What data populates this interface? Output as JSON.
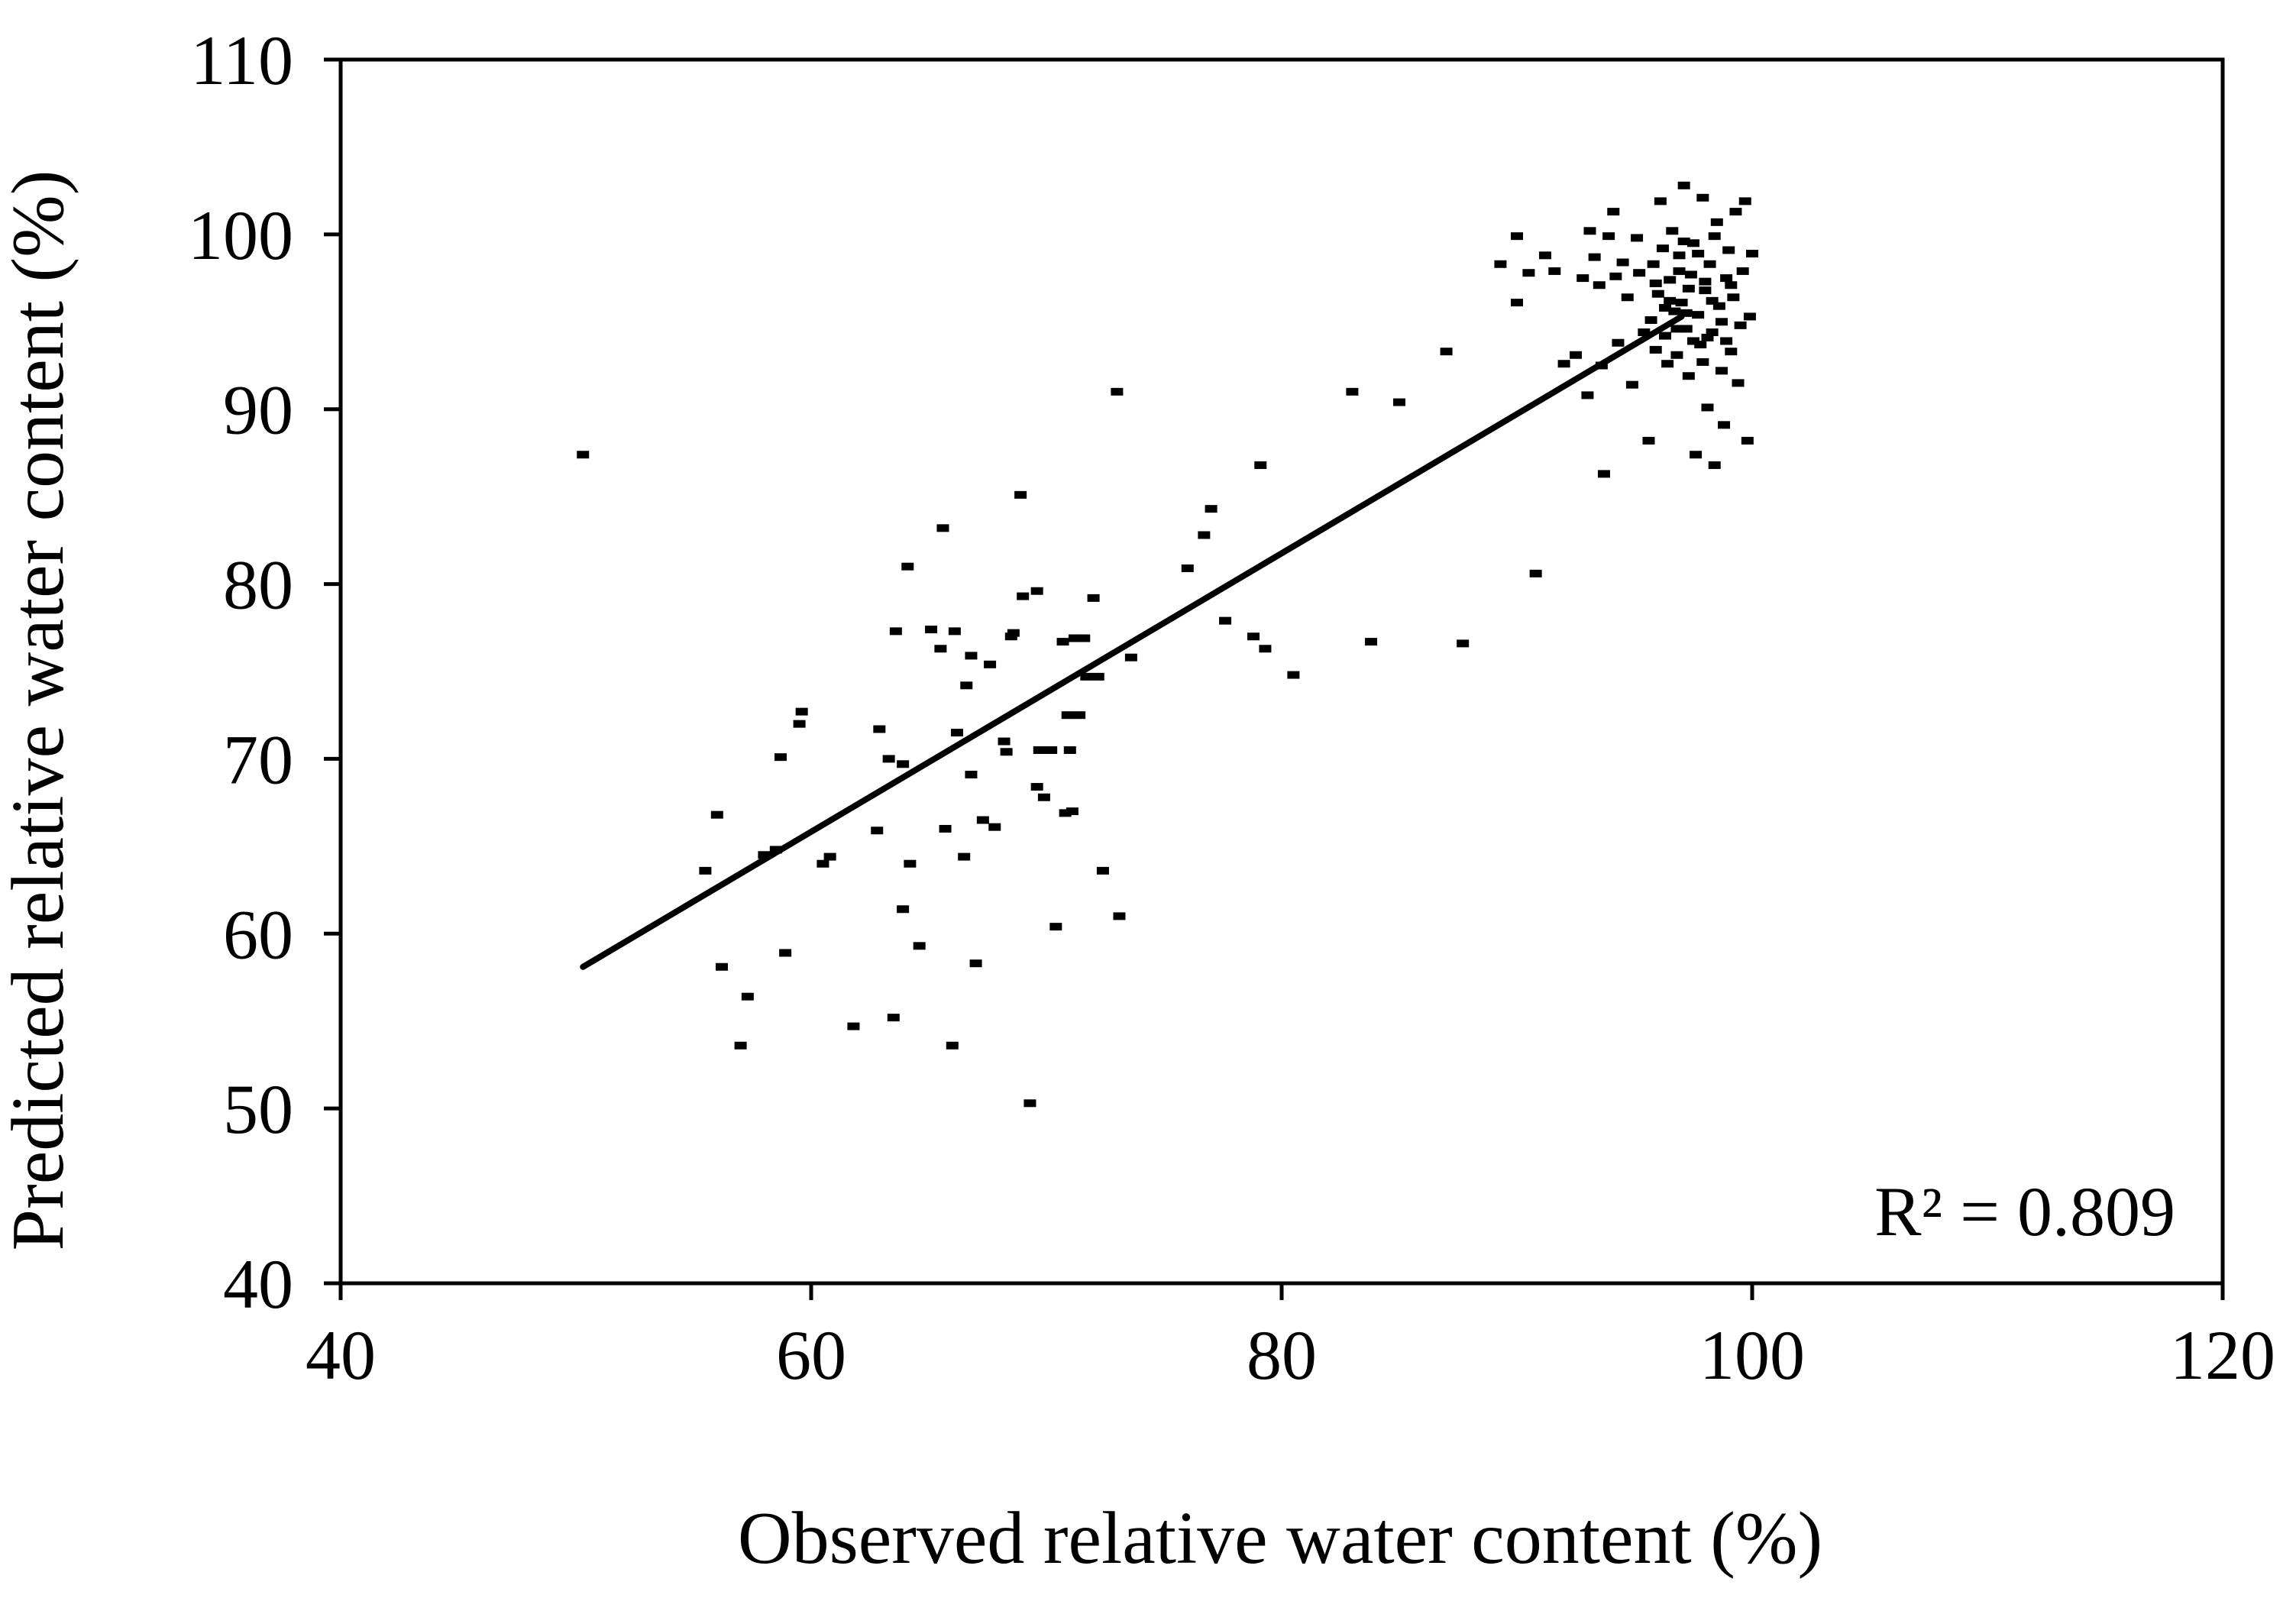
{
  "chart_data": {
    "type": "scatter",
    "title": "",
    "xlabel": "Observed relative water content (%)",
    "ylabel": "Predicted relative water content (%)",
    "xlim": [
      40,
      120
    ],
    "ylim": [
      40,
      110
    ],
    "xticks": [
      "40",
      "60",
      "80",
      "100",
      "120"
    ],
    "yticks": [
      "40",
      "50",
      "60",
      "70",
      "80",
      "90",
      "100",
      "110"
    ],
    "grid": false,
    "legend": "none",
    "annotation": "R² = 0.809",
    "colors": {
      "points": "#000000",
      "line": "#000000",
      "axes": "#000000"
    },
    "trendline": {
      "x": [
        50.3,
        97.0
      ],
      "y": [
        58.1,
        95.3
      ]
    },
    "series": [
      {
        "name": "observations",
        "points": [
          [
            50.3,
            87.4
          ],
          [
            55.5,
            63.6
          ],
          [
            56.0,
            66.8
          ],
          [
            56.2,
            58.1
          ],
          [
            57.0,
            53.6
          ],
          [
            57.3,
            56.4
          ],
          [
            58.0,
            64.5
          ],
          [
            58.5,
            64.8
          ],
          [
            58.7,
            70.1
          ],
          [
            58.9,
            58.9
          ],
          [
            59.5,
            72.0
          ],
          [
            59.6,
            72.7
          ],
          [
            60.5,
            64.0
          ],
          [
            60.8,
            64.4
          ],
          [
            61.8,
            54.7
          ],
          [
            62.8,
            65.9
          ],
          [
            62.9,
            71.7
          ],
          [
            63.3,
            70.0
          ],
          [
            63.5,
            55.2
          ],
          [
            63.6,
            77.3
          ],
          [
            63.9,
            69.7
          ],
          [
            63.9,
            61.4
          ],
          [
            64.1,
            81.0
          ],
          [
            64.2,
            64.0
          ],
          [
            64.6,
            59.3
          ],
          [
            65.1,
            77.4
          ],
          [
            65.5,
            76.3
          ],
          [
            65.6,
            83.2
          ],
          [
            65.7,
            66.0
          ],
          [
            66.0,
            53.6
          ],
          [
            66.1,
            77.3
          ],
          [
            66.2,
            71.5
          ],
          [
            66.5,
            64.4
          ],
          [
            66.6,
            74.2
          ],
          [
            66.8,
            75.9
          ],
          [
            66.8,
            69.1
          ],
          [
            67.0,
            58.3
          ],
          [
            67.3,
            66.5
          ],
          [
            67.6,
            75.4
          ],
          [
            67.8,
            66.1
          ],
          [
            68.2,
            71.0
          ],
          [
            68.3,
            70.4
          ],
          [
            68.5,
            77.0
          ],
          [
            68.6,
            77.2
          ],
          [
            68.9,
            85.1
          ],
          [
            69.0,
            79.3
          ],
          [
            69.3,
            50.3
          ],
          [
            69.6,
            79.6
          ],
          [
            69.6,
            68.4
          ],
          [
            69.7,
            70.5
          ],
          [
            69.9,
            67.8
          ],
          [
            70.2,
            70.5
          ],
          [
            70.4,
            60.4
          ],
          [
            70.7,
            76.7
          ],
          [
            70.8,
            66.9
          ],
          [
            70.9,
            72.5
          ],
          [
            71.0,
            70.5
          ],
          [
            71.1,
            67.0
          ],
          [
            71.2,
            76.9
          ],
          [
            71.4,
            72.5
          ],
          [
            71.6,
            76.9
          ],
          [
            71.7,
            74.7
          ],
          [
            72.0,
            79.2
          ],
          [
            72.2,
            74.7
          ],
          [
            72.4,
            63.6
          ],
          [
            73.0,
            91.0
          ],
          [
            73.1,
            61.0
          ],
          [
            73.6,
            75.8
          ],
          [
            76.0,
            80.9
          ],
          [
            76.7,
            82.8
          ],
          [
            77.0,
            84.3
          ],
          [
            77.6,
            77.9
          ],
          [
            78.8,
            77.0
          ],
          [
            79.1,
            86.8
          ],
          [
            79.3,
            76.3
          ],
          [
            80.5,
            74.8
          ],
          [
            83.0,
            91.0
          ],
          [
            83.8,
            76.7
          ],
          [
            85.0,
            90.4
          ],
          [
            87.0,
            93.3
          ],
          [
            87.7,
            76.6
          ],
          [
            89.3,
            98.3
          ],
          [
            90.0,
            96.1
          ],
          [
            90.0,
            99.9
          ],
          [
            90.5,
            97.8
          ],
          [
            90.8,
            80.6
          ],
          [
            91.2,
            98.8
          ],
          [
            91.6,
            97.9
          ],
          [
            92.0,
            92.6
          ],
          [
            92.5,
            93.1
          ],
          [
            92.8,
            97.5
          ],
          [
            93.0,
            90.8
          ],
          [
            93.1,
            100.2
          ],
          [
            93.3,
            98.7
          ],
          [
            93.5,
            97.1
          ],
          [
            93.6,
            92.5
          ],
          [
            93.7,
            86.3
          ],
          [
            93.9,
            99.9
          ],
          [
            94.1,
            101.3
          ],
          [
            94.2,
            97.6
          ],
          [
            94.3,
            93.8
          ],
          [
            94.5,
            98.4
          ],
          [
            94.7,
            96.4
          ],
          [
            94.9,
            91.4
          ],
          [
            95.1,
            99.8
          ],
          [
            95.2,
            97.8
          ],
          [
            95.4,
            94.4
          ],
          [
            95.6,
            88.2
          ],
          [
            95.7,
            95.1
          ],
          [
            95.8,
            98.3
          ],
          [
            95.9,
            93.4
          ],
          [
            96.0,
            96.6
          ],
          [
            96.1,
            101.9
          ],
          [
            96.2,
            99.2
          ],
          [
            96.3,
            94.2
          ],
          [
            96.4,
            92.6
          ],
          [
            96.5,
            97.4
          ],
          [
            96.6,
            100.2
          ],
          [
            96.7,
            95.6
          ],
          [
            96.8,
            93.1
          ],
          [
            96.9,
            98.8
          ],
          [
            97.0,
            96.1
          ],
          [
            97.1,
            102.8
          ],
          [
            97.2,
            94.6
          ],
          [
            97.3,
            91.9
          ],
          [
            97.4,
            97.7
          ],
          [
            97.5,
            99.5
          ],
          [
            97.6,
            87.4
          ],
          [
            97.7,
            95.4
          ],
          [
            97.8,
            93.7
          ],
          [
            97.9,
            102.1
          ],
          [
            98.0,
            96.8
          ],
          [
            98.1,
            90.1
          ],
          [
            98.2,
            98.3
          ],
          [
            98.3,
            94.4
          ],
          [
            98.4,
            86.8
          ],
          [
            98.5,
            100.7
          ],
          [
            98.6,
            95.9
          ],
          [
            98.7,
            92.2
          ],
          [
            98.8,
            89.1
          ],
          [
            98.9,
            97.5
          ],
          [
            99.0,
            99.1
          ],
          [
            99.1,
            93.3
          ],
          [
            99.2,
            96.4
          ],
          [
            99.3,
            101.3
          ],
          [
            99.4,
            91.5
          ],
          [
            99.5,
            94.8
          ],
          [
            99.6,
            97.9
          ],
          [
            99.7,
            101.9
          ],
          [
            99.8,
            88.2
          ],
          [
            99.9,
            95.3
          ],
          [
            100.0,
            98.9
          ],
          [
            96.5,
            96.2
          ],
          [
            97.2,
            95.5
          ],
          [
            98.0,
            97.3
          ],
          [
            97.5,
            93.9
          ],
          [
            96.9,
            97.9
          ],
          [
            98.3,
            96.2
          ],
          [
            97.7,
            98.9
          ],
          [
            96.3,
            95.8
          ],
          [
            98.7,
            95.0
          ],
          [
            97.1,
            99.6
          ],
          [
            98.9,
            93.9
          ],
          [
            96.8,
            94.6
          ],
          [
            97.9,
            92.7
          ],
          [
            98.4,
            99.9
          ],
          [
            95.9,
            97.2
          ],
          [
            99.1,
            97.1
          ],
          [
            97.3,
            96.9
          ],
          [
            98.1,
            94.1
          ]
        ]
      }
    ]
  }
}
